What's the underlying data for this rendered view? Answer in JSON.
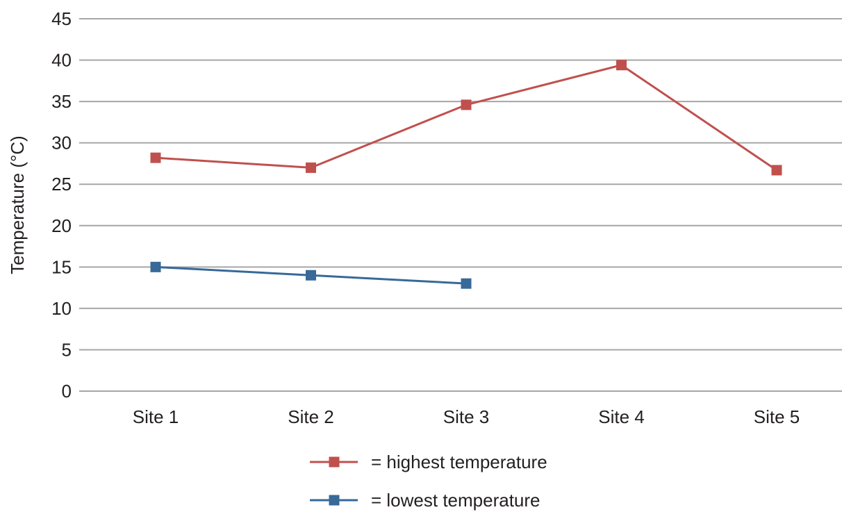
{
  "chart_data": {
    "type": "line",
    "categories": [
      "Site 1",
      "Site 2",
      "Site 3",
      "Site 4",
      "Site 5"
    ],
    "series": [
      {
        "name": "= highest temperature",
        "color": "#c0504d",
        "marker": "square",
        "values": [
          28.2,
          27.0,
          34.6,
          39.4,
          26.7
        ]
      },
      {
        "name": "= lowest temperature",
        "color": "#376999",
        "marker": "square",
        "values": [
          15.0,
          14.0,
          13.0,
          null,
          null
        ]
      }
    ],
    "title": "",
    "xlabel": "",
    "ylabel": "Temperature (°C)",
    "ylim": [
      0,
      45
    ],
    "yticks": [
      "0",
      "5",
      "10",
      "15",
      "20",
      "25",
      "30",
      "35",
      "40",
      "45"
    ],
    "grid": "horizontal",
    "gridColor": "#a6a6a6",
    "legend_position": "bottom-center"
  }
}
